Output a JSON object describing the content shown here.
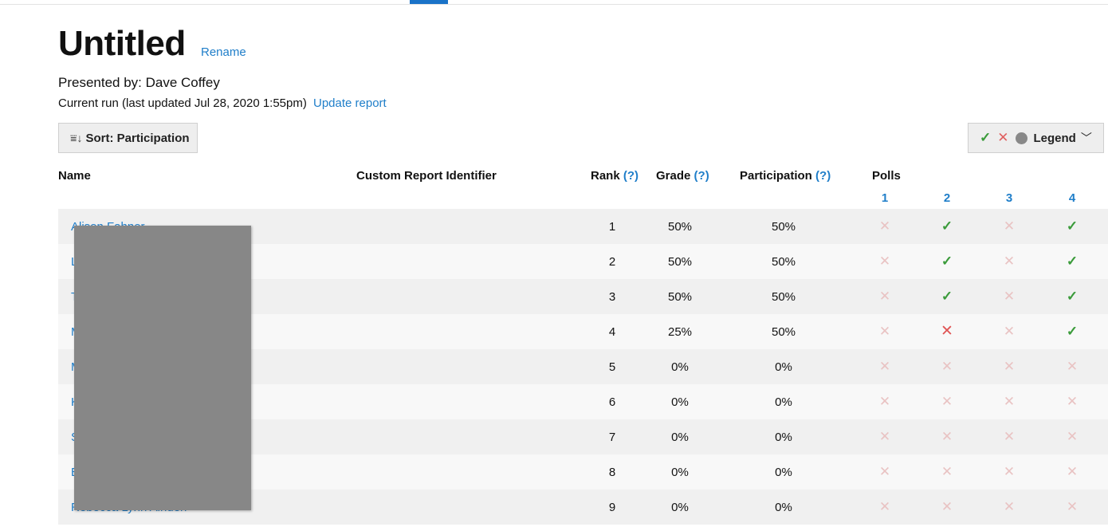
{
  "report": {
    "title": "Untitled",
    "rename_label": "Rename",
    "presenter": "Presented by: Dave Coffey",
    "run_info": "Current run (last updated Jul 28, 2020 1:55pm)",
    "update_label": "Update report"
  },
  "toolbar": {
    "sort_label": "Sort: Participation",
    "legend_label": "Legend"
  },
  "table": {
    "headers": {
      "name": "Name",
      "custom_id": "Custom Report Identifier",
      "rank": "Rank",
      "grade": "Grade",
      "participation": "Participation",
      "polls": "Polls",
      "help": "(?)"
    },
    "poll_numbers": [
      "1",
      "2",
      "3",
      "4"
    ],
    "rows": [
      {
        "name": "Alison Fahner",
        "rank": "1",
        "grade": "50%",
        "participation": "50%",
        "polls": [
          "none",
          "correct",
          "none",
          "correct"
        ]
      },
      {
        "name": "L",
        "rank": "2",
        "grade": "50%",
        "participation": "50%",
        "polls": [
          "none",
          "correct",
          "none",
          "correct"
        ]
      },
      {
        "name": "T",
        "rank": "3",
        "grade": "50%",
        "participation": "50%",
        "polls": [
          "none",
          "correct",
          "none",
          "correct"
        ]
      },
      {
        "name": "M",
        "rank": "4",
        "grade": "25%",
        "participation": "50%",
        "polls": [
          "none",
          "incorrect",
          "none",
          "correct"
        ]
      },
      {
        "name": "M",
        "rank": "5",
        "grade": "0%",
        "participation": "0%",
        "polls": [
          "none",
          "none",
          "none",
          "none"
        ]
      },
      {
        "name": "K",
        "rank": "6",
        "grade": "0%",
        "participation": "0%",
        "polls": [
          "none",
          "none",
          "none",
          "none"
        ]
      },
      {
        "name": "S",
        "rank": "7",
        "grade": "0%",
        "participation": "0%",
        "polls": [
          "none",
          "none",
          "none",
          "none"
        ]
      },
      {
        "name": "E",
        "rank": "8",
        "grade": "0%",
        "participation": "0%",
        "polls": [
          "none",
          "none",
          "none",
          "none"
        ]
      },
      {
        "name": "Rebecca Lynn Alnden",
        "rank": "9",
        "grade": "0%",
        "participation": "0%",
        "polls": [
          "none",
          "none",
          "none",
          "none"
        ]
      }
    ]
  },
  "icons": {
    "correct": "check-icon",
    "incorrect": "cross-icon",
    "none": "cross-icon",
    "sort": "sort-icon",
    "legend_dot": "circle-icon",
    "chevron": "chevron-down-icon"
  },
  "colors": {
    "link": "#1f7ec9",
    "correct": "#3a9b3a",
    "incorrect": "#e05555",
    "no_response": "#e9c3c3",
    "accent": "#1a73c8"
  }
}
